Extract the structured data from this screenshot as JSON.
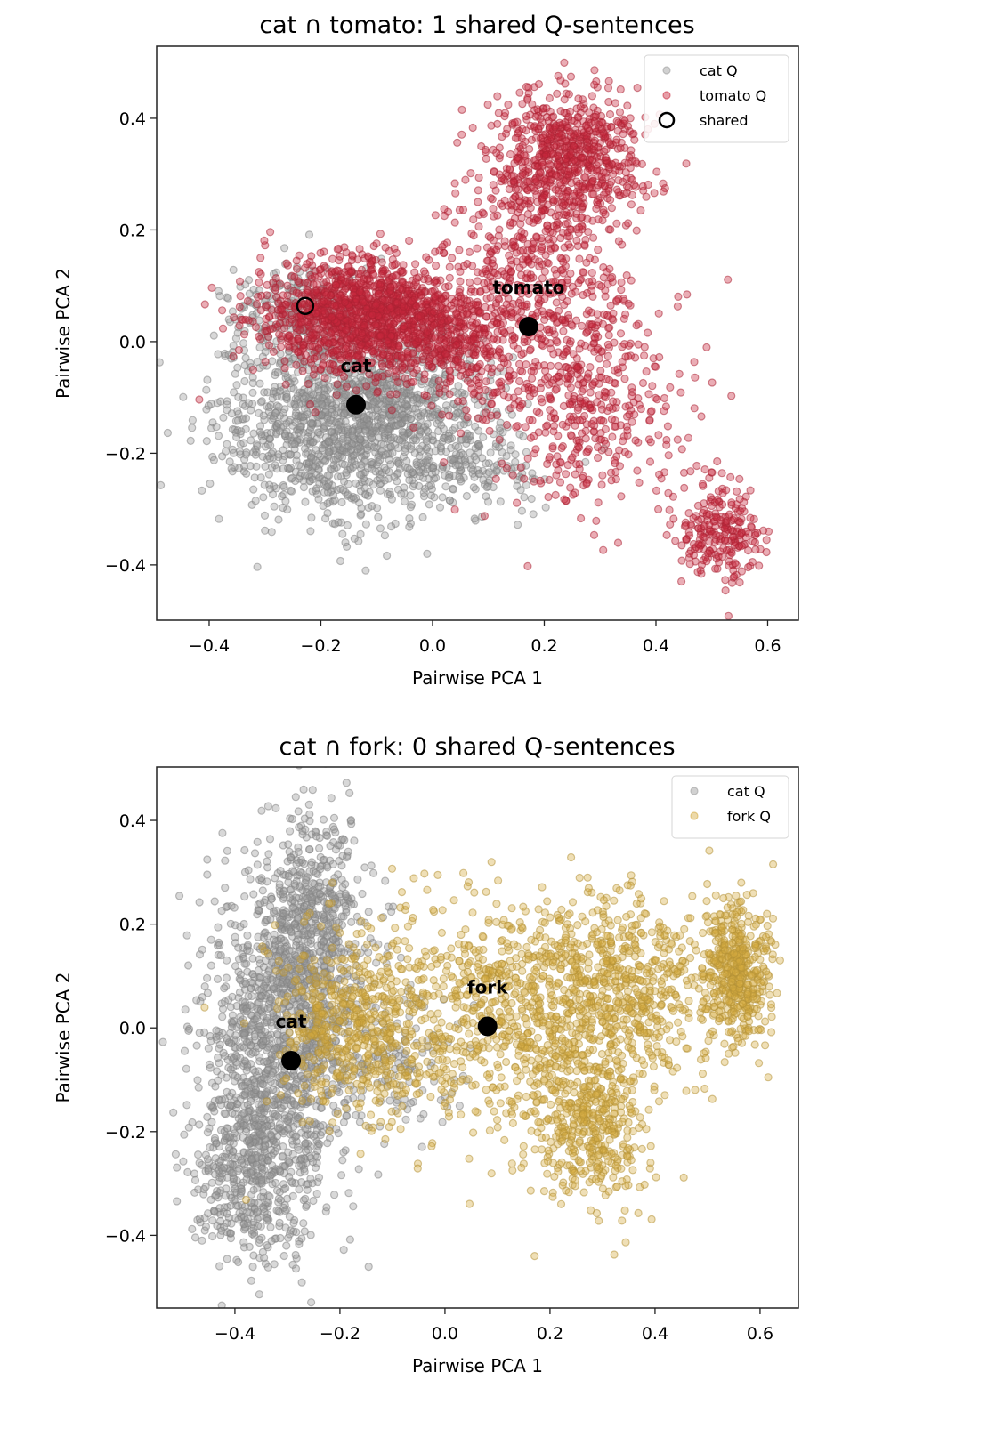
{
  "chart_data": [
    {
      "type": "scatter",
      "title": "cat ∩ tomato: 1 shared Q-sentences",
      "xlabel": "Pairwise PCA 1",
      "ylabel": "Pairwise PCA 2",
      "xlim": [
        -0.494,
        0.655
      ],
      "ylim": [
        -0.499,
        0.529
      ],
      "xticks": [
        -0.4,
        -0.2,
        0.0,
        0.2,
        0.4,
        0.6
      ],
      "yticks": [
        -0.4,
        -0.2,
        0.0,
        0.2,
        0.4
      ],
      "xtick_labels": [
        "−0.4",
        "−0.2",
        "0.0",
        "0.2",
        "0.4",
        "0.6"
      ],
      "ytick_labels": [
        "−0.4",
        "−0.2",
        "0.0",
        "0.2",
        "0.4"
      ],
      "grid": false,
      "legend_position": "top-right",
      "legend": [
        {
          "label": "cat Q",
          "marker": "dot",
          "color": "#999999"
        },
        {
          "label": "tomato Q",
          "marker": "dot",
          "color": "#c8283c"
        },
        {
          "label": "shared",
          "marker": "ring",
          "color": "#000000"
        }
      ],
      "series": [
        {
          "name": "cat Q",
          "color": "#999999",
          "alpha": 0.38,
          "clusters": [
            {
              "cx": -0.17,
              "cy": -0.15,
              "sx": 0.11,
              "sy": 0.085,
              "n": 1100
            },
            {
              "cx": -0.05,
              "cy": -0.12,
              "sx": 0.09,
              "sy": 0.07,
              "n": 450
            },
            {
              "cx": -0.24,
              "cy": 0.05,
              "sx": 0.06,
              "sy": 0.05,
              "n": 250
            },
            {
              "cx": 0.08,
              "cy": -0.22,
              "sx": 0.06,
              "sy": 0.04,
              "n": 120
            }
          ]
        },
        {
          "name": "tomato Q",
          "color": "#c8283c",
          "alpha": 0.38,
          "clusters": [
            {
              "cx": -0.15,
              "cy": 0.05,
              "sx": 0.085,
              "sy": 0.05,
              "n": 1000
            },
            {
              "cx": -0.03,
              "cy": 0.03,
              "sx": 0.07,
              "sy": 0.05,
              "n": 500
            },
            {
              "cx": 0.24,
              "cy": 0.33,
              "sx": 0.065,
              "sy": 0.06,
              "n": 700
            },
            {
              "cx": 0.18,
              "cy": 0.13,
              "sx": 0.08,
              "sy": 0.09,
              "n": 400
            },
            {
              "cx": 0.27,
              "cy": -0.1,
              "sx": 0.09,
              "sy": 0.1,
              "n": 450
            },
            {
              "cx": 0.51,
              "cy": -0.34,
              "sx": 0.035,
              "sy": 0.045,
              "n": 230
            },
            {
              "cx": 0.08,
              "cy": -0.02,
              "sx": 0.06,
              "sy": 0.06,
              "n": 200
            }
          ]
        }
      ],
      "shared_points": [
        {
          "x": -0.228,
          "y": 0.064
        }
      ],
      "centroids": [
        {
          "label": "cat",
          "x": -0.137,
          "y": -0.113
        },
        {
          "label": "tomato",
          "x": 0.172,
          "y": 0.027
        }
      ]
    },
    {
      "type": "scatter",
      "title": "cat ∩ fork: 0 shared Q-sentences",
      "xlabel": "Pairwise PCA 1",
      "ylabel": "Pairwise PCA 2",
      "xlim": [
        -0.549,
        0.673
      ],
      "ylim": [
        -0.54,
        0.503
      ],
      "xticks": [
        -0.4,
        -0.2,
        0.0,
        0.2,
        0.4,
        0.6
      ],
      "yticks": [
        -0.4,
        -0.2,
        0.0,
        0.2,
        0.4
      ],
      "xtick_labels": [
        "−0.4",
        "−0.2",
        "0.0",
        "0.2",
        "0.4",
        "0.6"
      ],
      "ytick_labels": [
        "−0.4",
        "−0.2",
        "0.0",
        "0.2",
        "0.4"
      ],
      "grid": false,
      "legend_position": "top-right",
      "legend": [
        {
          "label": "cat Q",
          "marker": "dot",
          "color": "#999999"
        },
        {
          "label": "fork Q",
          "marker": "dot",
          "color": "#d4aa40"
        }
      ],
      "series": [
        {
          "name": "cat Q",
          "color": "#999999",
          "alpha": 0.38,
          "clusters": [
            {
              "cx": -0.32,
              "cy": -0.05,
              "sx": 0.07,
              "sy": 0.17,
              "n": 1300
            },
            {
              "cx": -0.25,
              "cy": 0.2,
              "sx": 0.05,
              "sy": 0.12,
              "n": 500
            },
            {
              "cx": -0.38,
              "cy": -0.3,
              "sx": 0.05,
              "sy": 0.08,
              "n": 300
            },
            {
              "cx": -0.1,
              "cy": -0.05,
              "sx": 0.07,
              "sy": 0.08,
              "n": 150
            }
          ]
        },
        {
          "name": "fork Q",
          "color": "#d4aa40",
          "alpha": 0.38,
          "clusters": [
            {
              "cx": -0.18,
              "cy": 0.0,
              "sx": 0.07,
              "sy": 0.09,
              "n": 500
            },
            {
              "cx": 0.1,
              "cy": 0.02,
              "sx": 0.13,
              "sy": 0.1,
              "n": 700
            },
            {
              "cx": 0.27,
              "cy": -0.18,
              "sx": 0.06,
              "sy": 0.08,
              "n": 450
            },
            {
              "cx": 0.35,
              "cy": 0.05,
              "sx": 0.1,
              "sy": 0.08,
              "n": 450
            },
            {
              "cx": 0.555,
              "cy": 0.11,
              "sx": 0.03,
              "sy": 0.07,
              "n": 450
            },
            {
              "cx": 0.3,
              "cy": 0.15,
              "sx": 0.12,
              "sy": 0.06,
              "n": 200
            }
          ]
        }
      ],
      "shared_points": [],
      "centroids": [
        {
          "label": "cat",
          "x": -0.293,
          "y": -0.063
        },
        {
          "label": "fork",
          "x": 0.081,
          "y": 0.003
        }
      ]
    }
  ]
}
